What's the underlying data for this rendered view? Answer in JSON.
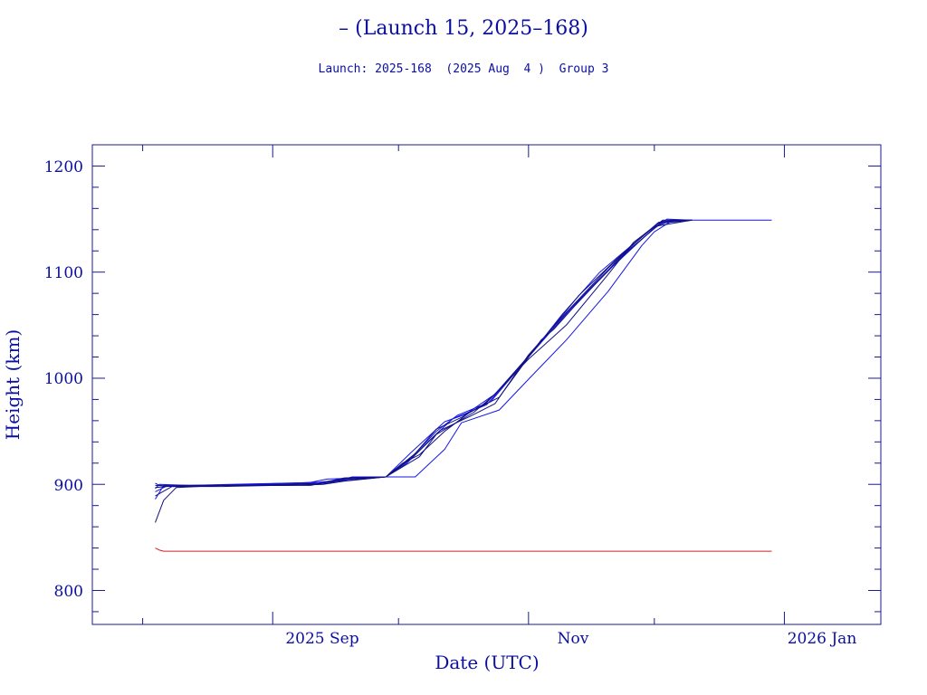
{
  "chart_data": {
    "type": "line",
    "title": "– (Launch 15, 2025–168)",
    "subtitle": "Launch: 2025-168  (2025 Aug  4 )  Group 3",
    "xlabel": "Date (UTC)",
    "ylabel": "Height (km)",
    "x_tick_labels": [
      "2025 Sep",
      "Nov",
      "2026 Jan"
    ],
    "y_tick_labels": [
      "800",
      "900",
      "1000",
      "1100",
      "1200"
    ],
    "xlim": [
      "2025-07-20",
      "2026-01-24"
    ],
    "ylim": [
      768,
      1220
    ],
    "grid": false,
    "colors": {
      "frame": "#1a1a8c",
      "text": "#0b0fa0",
      "satellites": "#1515e6",
      "satellites_alt": "#101080",
      "reference": "#d42020"
    },
    "series": [
      {
        "color": "#1515e6",
        "x": [
          "2025-08-04",
          "2025-08-05",
          "2025-08-08",
          "2025-08-15",
          "2025-08-25",
          "2025-09-05",
          "2025-09-12",
          "2025-09-17",
          "2025-09-20",
          "2025-09-28",
          "2025-10-05",
          "2025-10-12",
          "2025-10-16",
          "2025-10-25",
          "2025-11-01",
          "2025-11-10",
          "2025-11-20",
          "2025-11-28",
          "2025-12-01",
          "2025-12-05",
          "2025-12-10",
          "2025-12-20",
          "2025-12-29"
        ],
        "y": [
          901,
          899,
          898,
          899,
          900,
          901,
          902,
          904,
          907,
          907,
          907,
          933,
          958,
          970,
          999,
          1036,
          1082,
          1125,
          1138,
          1148,
          1149,
          1149,
          1149
        ]
      },
      {
        "color": "#1515e6",
        "x": [
          "2025-08-04",
          "2025-08-06",
          "2025-08-10",
          "2025-08-20",
          "2025-09-01",
          "2025-09-09",
          "2025-09-14",
          "2025-09-28",
          "2025-10-04",
          "2025-10-12",
          "2025-10-17",
          "2025-10-24",
          "2025-11-02",
          "2025-11-11",
          "2025-11-21",
          "2025-12-01",
          "2025-12-05",
          "2025-12-10"
        ],
        "y": [
          886,
          899,
          899,
          899,
          900,
          901,
          905,
          907,
          930,
          959,
          966,
          985,
          1025,
          1065,
          1105,
          1142,
          1149,
          1149
        ]
      },
      {
        "color": "#1515e6",
        "x": [
          "2025-08-04",
          "2025-08-05",
          "2025-08-12",
          "2025-08-22",
          "2025-09-03",
          "2025-09-13",
          "2025-09-20",
          "2025-09-28",
          "2025-10-04",
          "2025-10-10",
          "2025-10-15",
          "2025-10-23",
          "2025-11-01",
          "2025-11-12",
          "2025-11-24",
          "2025-12-01",
          "2025-12-04",
          "2025-12-10"
        ],
        "y": [
          896,
          900,
          899,
          900,
          901,
          902,
          904,
          907,
          925,
          950,
          965,
          978,
          1020,
          1070,
          1118,
          1141,
          1150,
          1149
        ]
      },
      {
        "color": "#1515e6",
        "x": [
          "2025-08-04",
          "2025-08-07",
          "2025-08-18",
          "2025-08-30",
          "2025-09-12",
          "2025-09-18",
          "2025-09-28",
          "2025-10-03",
          "2025-10-08",
          "2025-10-14",
          "2025-10-22",
          "2025-10-31",
          "2025-11-09",
          "2025-11-18",
          "2025-11-27",
          "2025-12-02",
          "2025-12-10"
        ],
        "y": [
          893,
          899,
          899,
          900,
          901,
          906,
          907,
          920,
          940,
          962,
          975,
          1015,
          1060,
          1100,
          1130,
          1147,
          1149
        ]
      },
      {
        "color": "#101080",
        "x": [
          "2025-08-04",
          "2025-08-06",
          "2025-08-09",
          "2025-08-20",
          "2025-09-01",
          "2025-09-10",
          "2025-09-13",
          "2025-09-18",
          "2025-09-28",
          "2025-10-02",
          "2025-10-06",
          "2025-10-12",
          "2025-10-18",
          "2025-10-25",
          "2025-11-04",
          "2025-11-07",
          "2025-11-12",
          "2025-11-22",
          "2025-11-30",
          "2025-12-03",
          "2025-12-10"
        ],
        "y": [
          864,
          885,
          897,
          899,
          899,
          899,
          901,
          906,
          907,
          920,
          928,
          950,
          968,
          982,
          1036,
          1046,
          1068,
          1110,
          1138,
          1148,
          1149
        ]
      },
      {
        "color": "#101080",
        "x": [
          "2025-08-04",
          "2025-08-08",
          "2025-08-20",
          "2025-09-02",
          "2025-09-12",
          "2025-09-16",
          "2025-09-28",
          "2025-10-05",
          "2025-10-10",
          "2025-10-16",
          "2025-10-22",
          "2025-11-01",
          "2025-11-10",
          "2025-11-20",
          "2025-11-26",
          "2025-12-02",
          "2025-12-10"
        ],
        "y": [
          889,
          898,
          898,
          899,
          900,
          904,
          907,
          929,
          952,
          963,
          977,
          1018,
          1050,
          1098,
          1128,
          1146,
          1149
        ]
      },
      {
        "color": "#101080",
        "x": [
          "2025-08-04",
          "2025-08-10",
          "2025-08-25",
          "2025-09-05",
          "2025-09-14",
          "2025-09-19",
          "2025-09-28",
          "2025-10-06",
          "2025-10-10",
          "2025-10-19",
          "2025-10-24",
          "2025-11-03",
          "2025-11-13",
          "2025-11-23",
          "2025-12-01",
          "2025-12-10"
        ],
        "y": [
          897,
          899,
          899,
          900,
          901,
          905,
          907,
          926,
          947,
          968,
          985,
          1030,
          1078,
          1116,
          1143,
          1149
        ]
      },
      {
        "color": "#101080",
        "x": [
          "2025-08-04",
          "2025-08-09",
          "2025-08-21",
          "2025-09-04",
          "2025-09-13",
          "2025-09-18",
          "2025-09-28",
          "2025-10-04",
          "2025-10-11",
          "2025-10-18",
          "2025-10-24",
          "2025-11-01",
          "2025-11-10",
          "2025-11-20",
          "2025-11-29",
          "2025-12-03",
          "2025-12-10"
        ],
        "y": [
          899,
          898,
          899,
          899,
          900,
          903,
          907,
          924,
          951,
          964,
          976,
          1022,
          1062,
          1104,
          1137,
          1149,
          1149
        ]
      },
      {
        "color": "#d42020",
        "x": [
          "2025-08-04",
          "2025-08-05",
          "2025-08-06",
          "2025-12-29"
        ],
        "y": [
          840,
          838,
          837,
          837
        ]
      }
    ]
  }
}
